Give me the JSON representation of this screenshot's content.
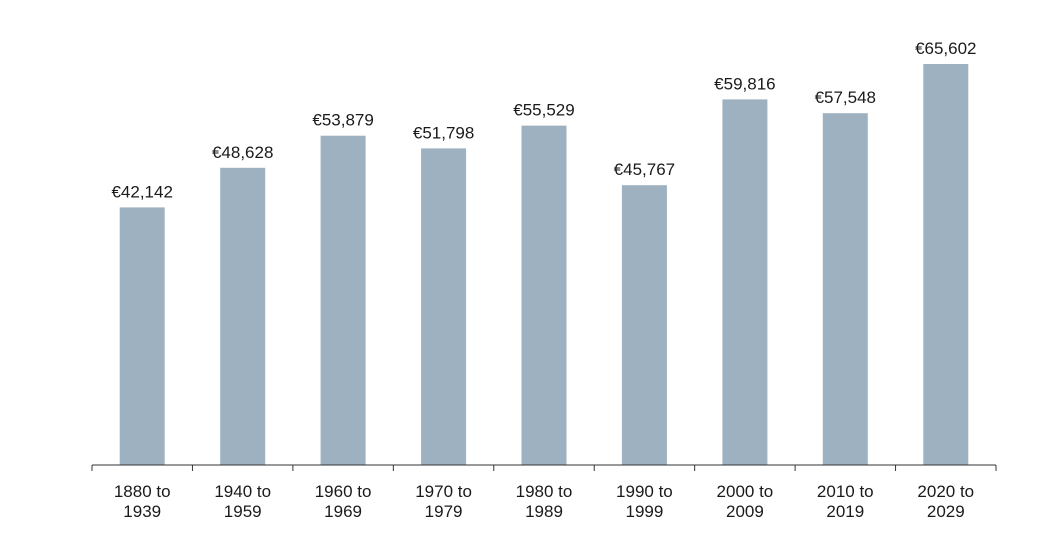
{
  "chart_data": {
    "type": "bar",
    "categories": [
      [
        "1880 to",
        "1939"
      ],
      [
        "1940 to",
        "1959"
      ],
      [
        "1960 to",
        "1969"
      ],
      [
        "1970 to",
        "1979"
      ],
      [
        "1980 to",
        "1989"
      ],
      [
        "1990 to",
        "1999"
      ],
      [
        "2000 to",
        "2009"
      ],
      [
        "2010 to",
        "2019"
      ],
      [
        "2020 to",
        "2029"
      ]
    ],
    "values": [
      42142,
      48628,
      53879,
      51798,
      55529,
      45767,
      59816,
      57548,
      65602
    ],
    "value_labels": [
      "€42,142",
      "€48,628",
      "€53,879",
      "€51,798",
      "€55,529",
      "€45,767",
      "€59,816",
      "€57,548",
      "€65,602"
    ],
    "title": "",
    "xlabel": "",
    "ylabel": "",
    "ylim": [
      0,
      70000
    ],
    "grid": false,
    "legend": "none",
    "bar_color": "#9db1c0",
    "axis_color": "#333333"
  }
}
